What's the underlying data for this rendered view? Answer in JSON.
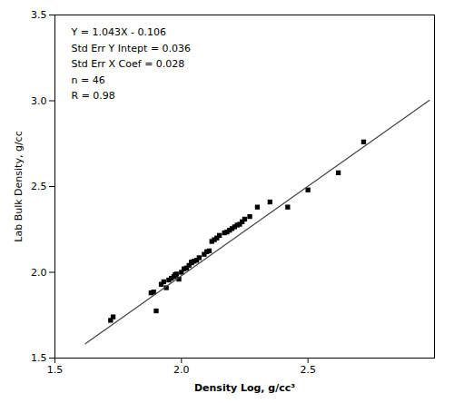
{
  "chart_data": {
    "type": "scatter",
    "xlabel": "Density Log, g/cc³",
    "ylabel": "Lab Bulk Density, g/cc",
    "annotations": [
      "Y = 1.043X - 0.106",
      "Std Err Y Intept = 0.036",
      "Std Err X Coef = 0.028",
      "n = 46",
      "R = 0.98"
    ],
    "series": [
      {
        "type": "scatter",
        "marker": "square",
        "color": "#000000",
        "x": [
          1.72,
          1.73,
          1.88,
          1.89,
          1.9,
          1.92,
          1.93,
          1.94,
          1.95,
          1.96,
          1.97,
          1.975,
          1.98,
          1.99,
          2.0,
          2.01,
          2.02,
          2.03,
          2.04,
          2.05,
          2.06,
          2.07,
          2.09,
          2.1,
          2.11,
          2.12,
          2.13,
          2.14,
          2.15,
          2.17,
          2.18,
          2.19,
          2.2,
          2.21,
          2.22,
          2.23,
          2.24,
          2.25,
          2.27,
          2.3,
          2.35,
          2.42,
          2.5,
          2.62,
          2.72,
          2.04
        ],
        "values": [
          1.72,
          1.74,
          1.88,
          1.885,
          1.775,
          1.93,
          1.945,
          1.91,
          1.955,
          1.965,
          1.975,
          1.985,
          1.99,
          1.96,
          2.0,
          2.02,
          2.025,
          2.04,
          2.055,
          2.065,
          2.07,
          2.085,
          2.105,
          2.12,
          2.125,
          2.18,
          2.19,
          2.2,
          2.215,
          2.23,
          2.235,
          2.245,
          2.255,
          2.265,
          2.275,
          2.28,
          2.295,
          2.31,
          2.325,
          2.38,
          2.41,
          2.38,
          2.48,
          2.58,
          2.76,
          2.06
        ]
      },
      {
        "type": "line",
        "line_style": "solid",
        "color": "#444444",
        "x": [
          1.62,
          2.98
        ],
        "values": [
          1.58366,
          3.00214
        ]
      }
    ],
    "xlim": [
      1.5,
      3.0
    ],
    "ylim": [
      1.5,
      3.5
    ],
    "xticks": [
      1.5,
      {
        "value": 2,
        "label": "2.0"
      },
      2.5
    ],
    "yticks": [
      1.5,
      {
        "value": 2,
        "label": "2.0"
      },
      2.5,
      {
        "value": 3,
        "label": "3.0"
      },
      3.5
    ],
    "grid": false
  }
}
